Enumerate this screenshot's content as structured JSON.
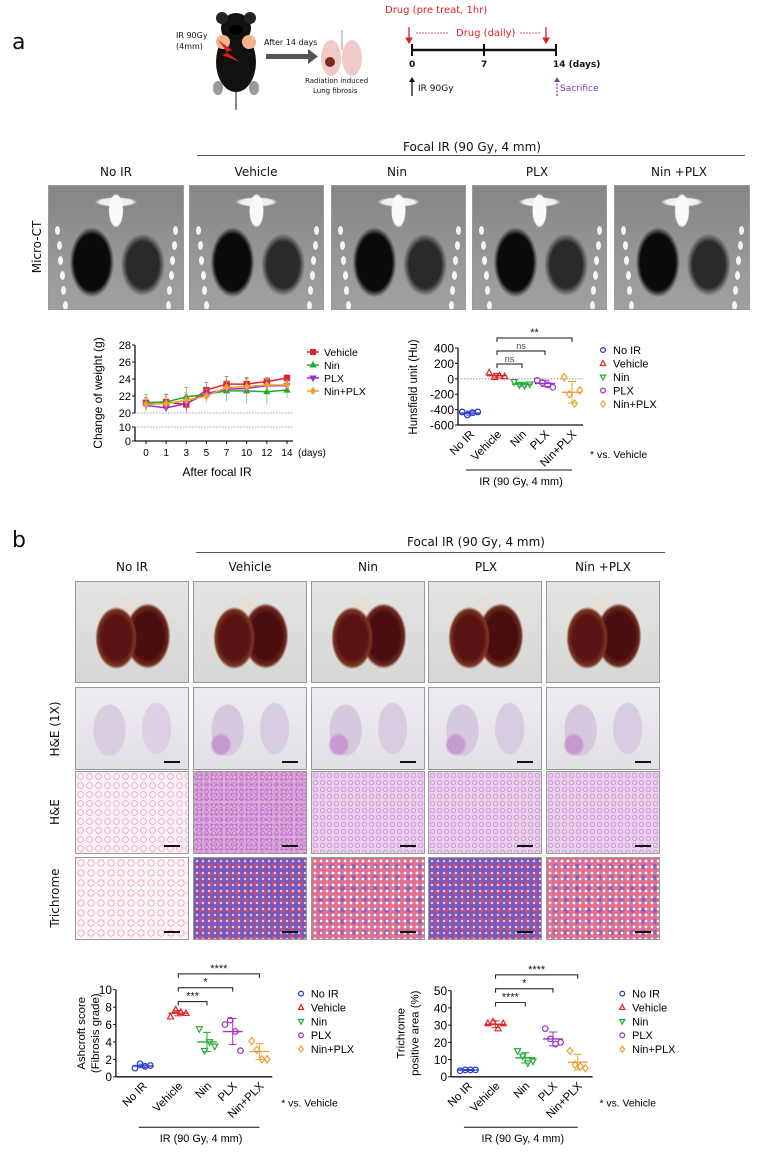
{
  "panel_a": {
    "label": "a",
    "schematic": {
      "ir_dose": "IR 90Gy",
      "ir_size": "(4mm)",
      "arrow_label": "After 14 days",
      "lung_caption_line1": "Radiation induced",
      "lung_caption_line2": "Lung fibrosis",
      "drug_pretreat": "Drug (pre treat, 1hr)",
      "drug_daily": "Drug (daily)",
      "tick_0": "0",
      "tick_7": "7",
      "tick_14": "14 (days)",
      "ir_marker": "IR 90Gy",
      "sacrifice": "Sacrifice"
    },
    "group_header": "Focal IR (90 Gy, 4 mm)",
    "columns": [
      "No IR",
      "Vehicle",
      "Nin",
      "PLX",
      "Nin +PLX"
    ],
    "row_label": "Micro-CT"
  },
  "panel_b": {
    "label": "b",
    "group_header": "Focal IR (90 Gy, 4 mm)",
    "columns": [
      "No IR",
      "Vehicle",
      "Nin",
      "PLX",
      "Nin +PLX"
    ],
    "row_labels": [
      "H&E (1X)",
      "H&E",
      "Trichrome"
    ]
  },
  "colors": {
    "No IR": "#2233cc",
    "Vehicle": "#e3222b",
    "Nin": "#22aa33",
    "PLX": "#9b30cc",
    "Nin+PLX": "#f0a030",
    "drug": "#e02020",
    "sacrifice": "#7a3fb0"
  },
  "chart_data": [
    {
      "type": "line",
      "ylabel": "Change of weight (g)",
      "xlabel": "After focal IR",
      "x_unit": "(days)",
      "categories": [
        "0",
        "1",
        "3",
        "5",
        "7",
        "10",
        "12",
        "14"
      ],
      "yticks": [
        0,
        10,
        20,
        22,
        24,
        26,
        28
      ],
      "axis_break": [
        10,
        20
      ],
      "ylim": [
        0,
        28
      ],
      "reference_lines": [
        10,
        20
      ],
      "legend_position": "right",
      "series": [
        {
          "name": "Vehicle",
          "marker": "square",
          "values": [
            21.2,
            21.3,
            21.0,
            22.7,
            23.4,
            23.4,
            23.7,
            24.1
          ],
          "error": [
            0.6,
            0.9,
            1.0,
            0.9,
            0.9,
            0.8,
            0.5,
            0.4
          ]
        },
        {
          "name": "Nin",
          "marker": "triangle-up",
          "values": [
            21.2,
            21.3,
            21.9,
            22.2,
            22.6,
            22.6,
            22.5,
            22.7
          ],
          "error": [
            1.0,
            0.9,
            1.1,
            0.8,
            1.2,
            1.5,
            1.5,
            0.9
          ]
        },
        {
          "name": "PLX",
          "marker": "triangle-down",
          "values": [
            20.9,
            20.6,
            21.1,
            22.3,
            22.8,
            22.9,
            23.2,
            23.2
          ],
          "error": [
            0.5,
            0.3,
            0.8,
            0.7,
            0.6,
            0.7,
            0.6,
            0.6
          ]
        },
        {
          "name": "Nin+PLX",
          "marker": "diamond",
          "values": [
            21.0,
            21.1,
            21.5,
            22.0,
            23.0,
            23.1,
            23.3,
            23.3
          ],
          "error": [
            0.7,
            0.8,
            0.9,
            0.8,
            0.7,
            0.8,
            0.7,
            0.6
          ]
        }
      ]
    },
    {
      "type": "scatter",
      "ylabel": [
        "Hunsfield unit (Hu)"
      ],
      "categories": [
        "No IR",
        "Vehicle",
        "Nin",
        "PLX",
        "Nin+PLX"
      ],
      "group_label": "IR (90 Gy, 4 mm)",
      "note": "* vs. Vehicle",
      "ylim": [
        -600,
        400
      ],
      "yticks": [
        -600,
        -400,
        -200,
        0,
        200,
        400
      ],
      "reference_lines": [
        0
      ],
      "legend_position": "right",
      "groups": [
        {
          "name": "No IR",
          "marker": "circle",
          "points": [
            -430,
            -470,
            -440,
            -430
          ],
          "mean": -445,
          "sd": 25
        },
        {
          "name": "Vehicle",
          "marker": "triangle-up",
          "points": [
            80,
            20,
            40,
            30
          ],
          "mean": 40,
          "sd": 30
        },
        {
          "name": "Nin",
          "marker": "triangle-down",
          "points": [
            -40,
            -80,
            -90,
            -70
          ],
          "mean": -70,
          "sd": 25
        },
        {
          "name": "PLX",
          "marker": "circle",
          "points": [
            -20,
            -50,
            -80,
            -110
          ],
          "mean": -60,
          "sd": 40
        },
        {
          "name": "Nin+PLX",
          "marker": "diamond",
          "points": [
            20,
            -200,
            -320,
            -150
          ],
          "mean": -175,
          "sd": 140
        }
      ],
      "comparisons": [
        {
          "from": "Vehicle",
          "to": "Nin+PLX",
          "label": "**"
        },
        {
          "from": "Vehicle",
          "to": "PLX",
          "label": "ns"
        },
        {
          "from": "Vehicle",
          "to": "Nin",
          "label": "ns"
        }
      ]
    },
    {
      "type": "scatter",
      "ylabel": [
        "Ashcroft score",
        "(Fibrosis grade)"
      ],
      "categories": [
        "No IR",
        "Vehicle",
        "Nin",
        "PLX",
        "Nin+PLX"
      ],
      "group_label": "IR (90 Gy, 4 mm)",
      "note": "* vs. Vehicle",
      "ylim": [
        0,
        10
      ],
      "yticks": [
        0,
        2,
        4,
        6,
        8,
        10
      ],
      "legend_position": "right",
      "groups": [
        {
          "name": "No IR",
          "marker": "circle",
          "points": [
            1.0,
            1.5,
            1.2,
            1.3
          ],
          "mean": 1.25,
          "sd": 0.2
        },
        {
          "name": "Vehicle",
          "marker": "triangle-up",
          "points": [
            6.9,
            7.7,
            7.4,
            7.3
          ],
          "mean": 7.3,
          "sd": 0.3
        },
        {
          "name": "Nin",
          "marker": "triangle-down",
          "points": [
            5.5,
            3.0,
            4.0,
            3.5
          ],
          "mean": 4.0,
          "sd": 1.1
        },
        {
          "name": "PLX",
          "marker": "circle",
          "points": [
            6.0,
            6.5,
            5.2,
            3.0
          ],
          "mean": 5.2,
          "sd": 1.5
        },
        {
          "name": "Nin+PLX",
          "marker": "diamond",
          "points": [
            4.1,
            3.1,
            2.0,
            2.0
          ],
          "mean": 2.9,
          "sd": 0.9
        }
      ],
      "comparisons": [
        {
          "from": "Vehicle",
          "to": "Nin+PLX",
          "label": "****"
        },
        {
          "from": "Vehicle",
          "to": "PLX",
          "label": "*"
        },
        {
          "from": "Vehicle",
          "to": "Nin",
          "label": "***"
        }
      ]
    },
    {
      "type": "scatter",
      "ylabel": [
        "Trichrome",
        "positive area (%)"
      ],
      "categories": [
        "No IR",
        "Vehicle",
        "Nin",
        "PLX",
        "Nin+PLX"
      ],
      "group_label": "IR (90 Gy, 4 mm)",
      "note": "* vs. Vehicle",
      "ylim": [
        0,
        50
      ],
      "yticks": [
        0,
        10,
        20,
        30,
        40,
        50
      ],
      "legend_position": "right",
      "groups": [
        {
          "name": "No IR",
          "marker": "circle",
          "points": [
            3.5,
            4.0,
            4.0,
            4.0
          ],
          "mean": 3.9,
          "sd": 0.3
        },
        {
          "name": "Vehicle",
          "marker": "triangle-up",
          "points": [
            31,
            32,
            28,
            31
          ],
          "mean": 30.5,
          "sd": 2
        },
        {
          "name": "Nin",
          "marker": "triangle-down",
          "points": [
            15,
            12,
            8,
            9
          ],
          "mean": 11,
          "sd": 3
        },
        {
          "name": "PLX",
          "marker": "circle",
          "points": [
            28,
            22,
            19,
            20
          ],
          "mean": 22,
          "sd": 4
        },
        {
          "name": "Nin+PLX",
          "marker": "diamond",
          "points": [
            15,
            7,
            6,
            5
          ],
          "mean": 8.5,
          "sd": 4.5
        }
      ],
      "comparisons": [
        {
          "from": "Vehicle",
          "to": "Nin+PLX",
          "label": "****"
        },
        {
          "from": "Vehicle",
          "to": "PLX",
          "label": "*"
        },
        {
          "from": "Vehicle",
          "to": "Nin",
          "label": "****"
        }
      ]
    }
  ]
}
